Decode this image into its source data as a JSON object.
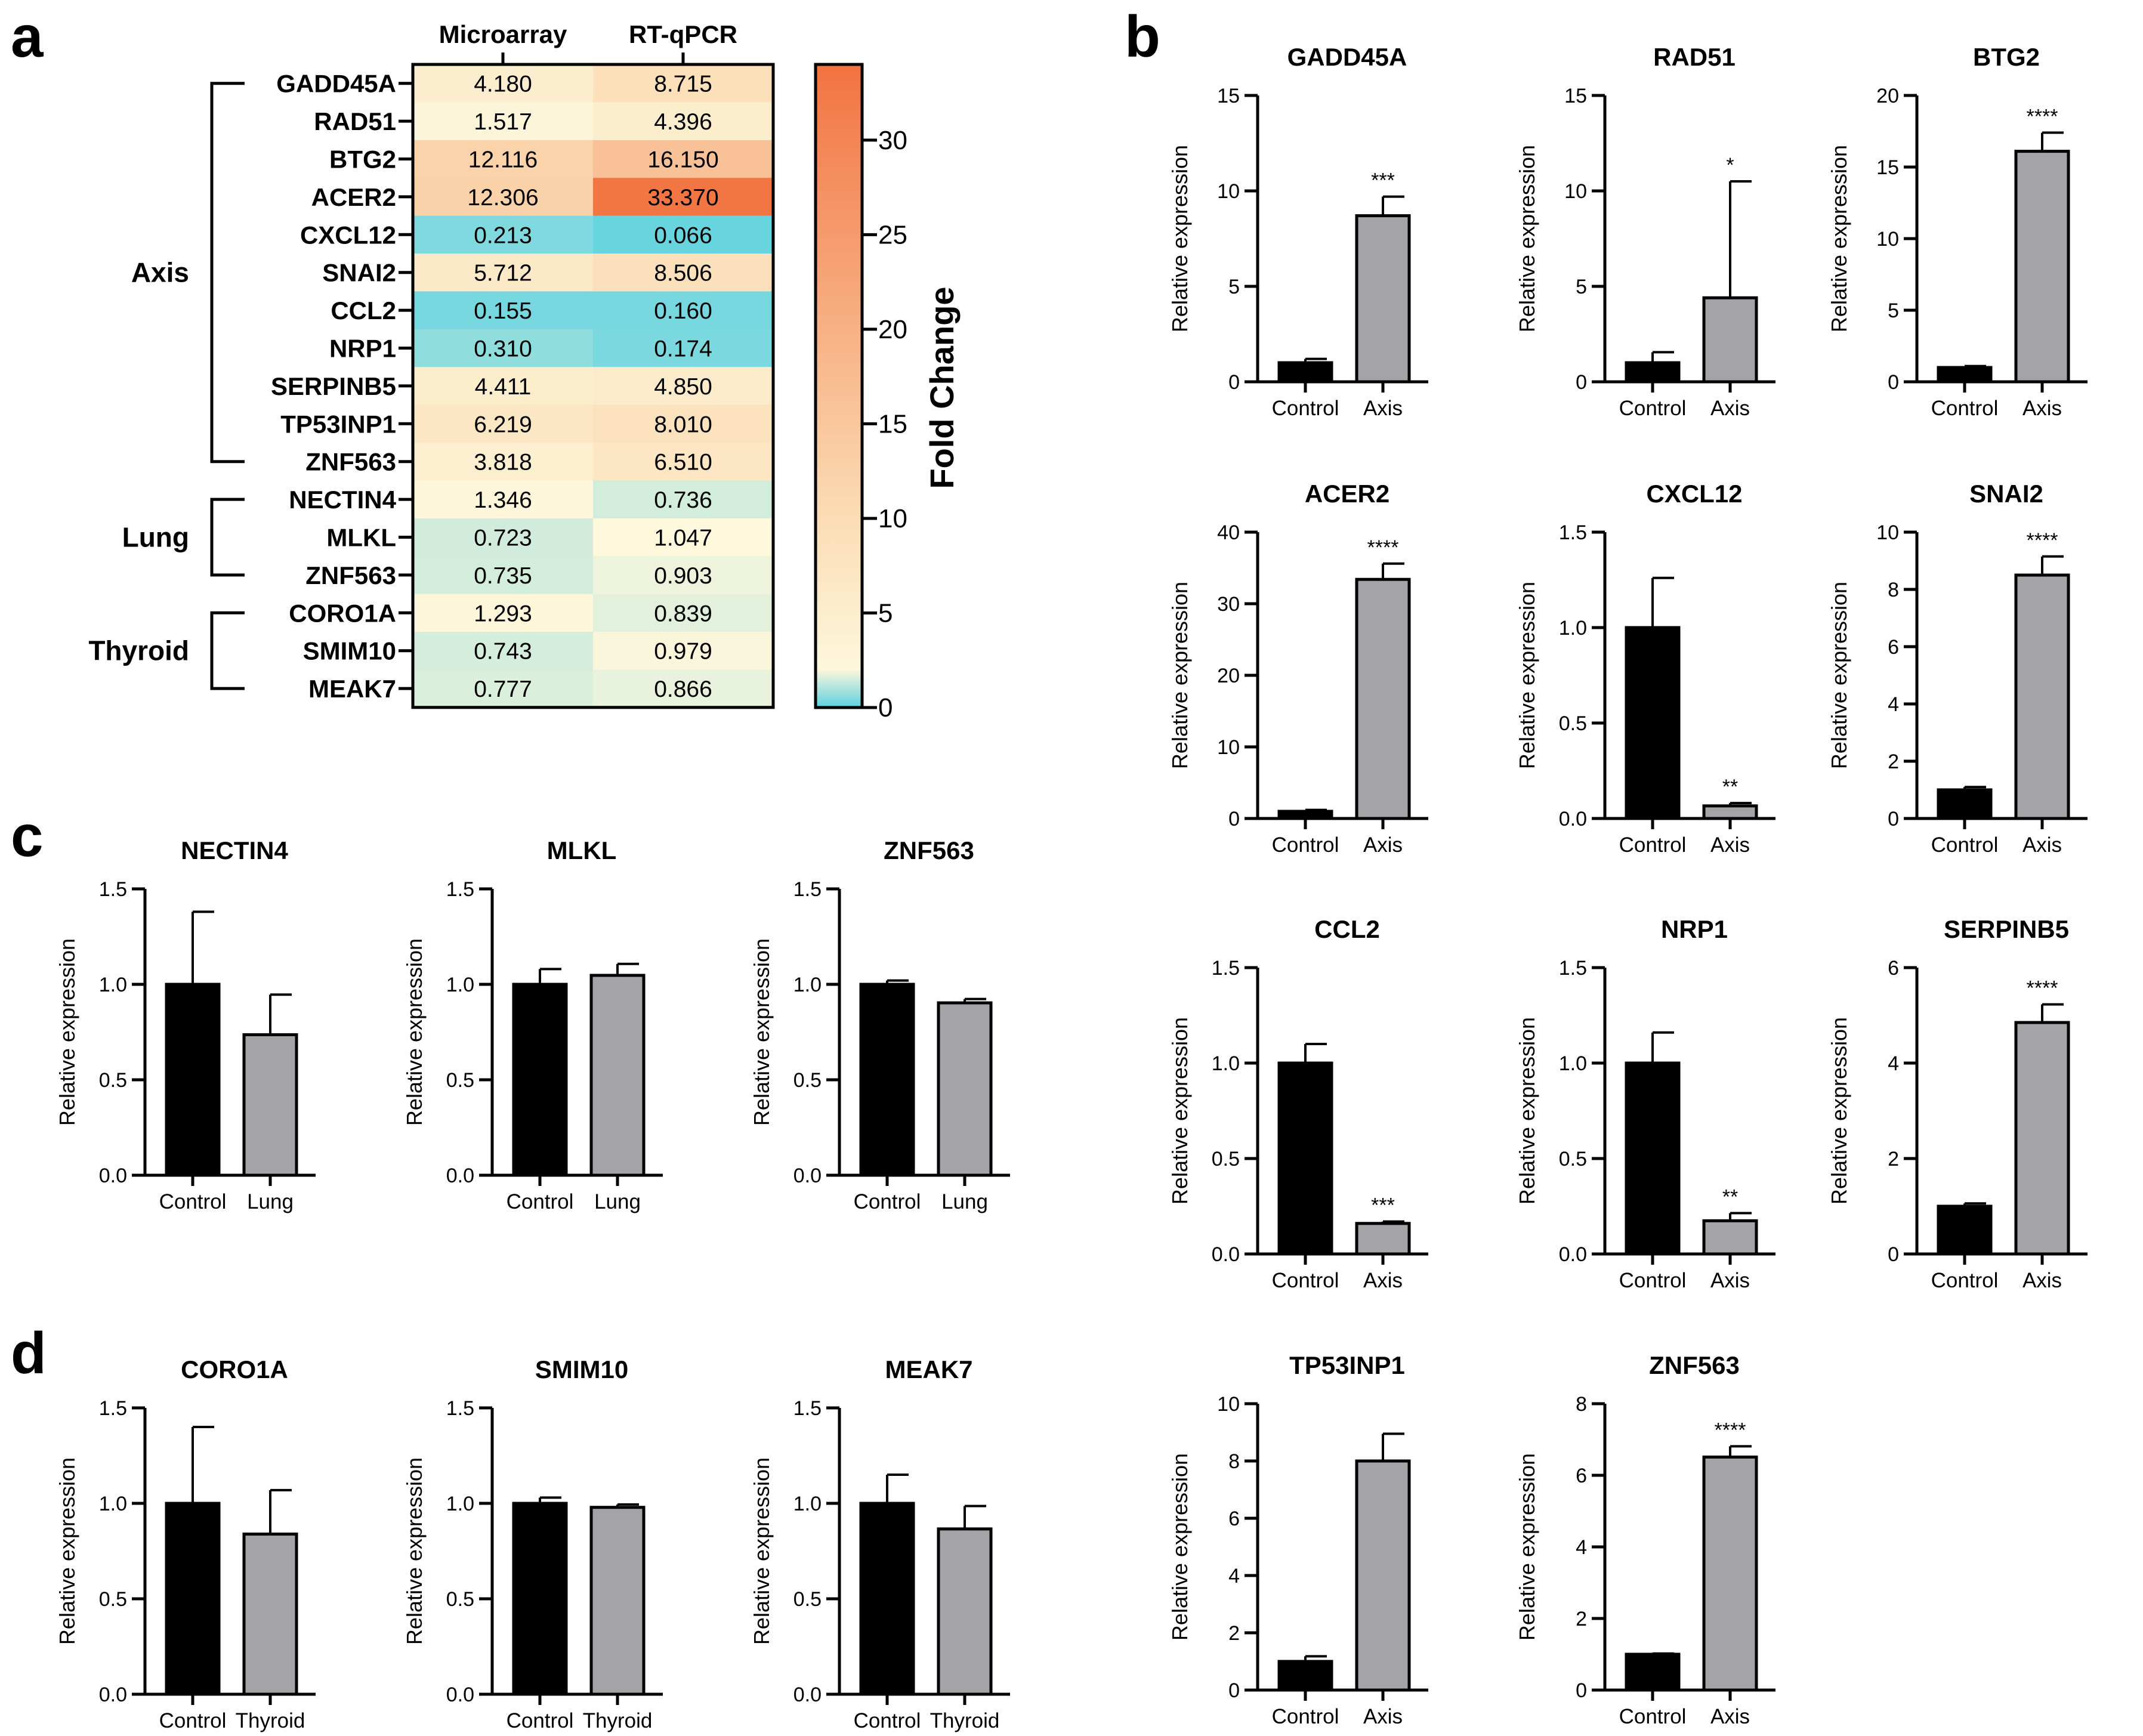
{
  "panel_labels": {
    "a": "a",
    "b": "b",
    "c": "c",
    "d": "d"
  },
  "colors": {
    "control_bar": "#000000",
    "treatment_bar": "#a3a3a8",
    "heatmap_low": "#5ed1de",
    "heatmap_mid": "#fdf7dc",
    "heatmap_high": "#f27341"
  },
  "chart_data": [
    {
      "type": "heatmap",
      "panel": "a",
      "columns": [
        "Microarray",
        "RT-qPCR"
      ],
      "rows": [
        "GADD45A",
        "RAD51",
        "BTG2",
        "ACER2",
        "CXCL12",
        "SNAI2",
        "CCL2",
        "NRP1",
        "SERPINB5",
        "TP53INP1",
        "ZNF563",
        "NECTIN4",
        "MLKL",
        "ZNF563",
        "CORO1A",
        "SMIM10",
        "MEAK7"
      ],
      "values": [
        [
          "4.180",
          "8.715"
        ],
        [
          "1.517",
          "4.396"
        ],
        [
          "12.116",
          "16.150"
        ],
        [
          "12.306",
          "33.370"
        ],
        [
          "0.213",
          "0.066"
        ],
        [
          "5.712",
          "8.506"
        ],
        [
          "0.155",
          "0.160"
        ],
        [
          "0.310",
          "0.174"
        ],
        [
          "4.411",
          "4.850"
        ],
        [
          "6.219",
          "8.010"
        ],
        [
          "3.818",
          "6.510"
        ],
        [
          "1.346",
          "0.736"
        ],
        [
          "0.723",
          "1.047"
        ],
        [
          "0.735",
          "0.903"
        ],
        [
          "1.293",
          "0.839"
        ],
        [
          "0.743",
          "0.979"
        ],
        [
          "0.777",
          "0.866"
        ]
      ],
      "groups": [
        {
          "name": "Axis",
          "first_row": 0,
          "last_row": 10
        },
        {
          "name": "Lung",
          "first_row": 11,
          "last_row": 13
        },
        {
          "name": "Thyroid",
          "first_row": 14,
          "last_row": 16
        }
      ],
      "colorbar": {
        "label": "Fold Change",
        "range": [
          0,
          34
        ],
        "ticks": [
          0,
          5,
          10,
          15,
          20,
          25,
          30
        ]
      }
    },
    {
      "type": "bar",
      "panel": "b",
      "ylabel": "Relative expression",
      "charts": [
        {
          "title": "GADD45A",
          "categories": [
            "Control",
            "Axis"
          ],
          "values": [
            1.0,
            8.7
          ],
          "errors": [
            0.2,
            1.0
          ],
          "ylim": [
            0,
            15
          ],
          "yticks": [
            "0",
            "5",
            "10",
            "15"
          ],
          "significance": "***"
        },
        {
          "title": "RAD51",
          "categories": [
            "Control",
            "Axis"
          ],
          "values": [
            1.0,
            4.4
          ],
          "errors": [
            0.55,
            6.1
          ],
          "ylim": [
            0,
            15
          ],
          "yticks": [
            "0",
            "5",
            "10",
            "15"
          ],
          "significance": "*"
        },
        {
          "title": "BTG2",
          "categories": [
            "Control",
            "Axis"
          ],
          "values": [
            1.0,
            16.1
          ],
          "errors": [
            0.1,
            1.3
          ],
          "ylim": [
            0,
            20
          ],
          "yticks": [
            "0",
            "5",
            "10",
            "15",
            "20"
          ],
          "significance": "****"
        },
        {
          "title": "ACER2",
          "categories": [
            "Control",
            "Axis"
          ],
          "values": [
            1.0,
            33.4
          ],
          "errors": [
            0.2,
            2.2
          ],
          "ylim": [
            0,
            40
          ],
          "yticks": [
            "0",
            "10",
            "20",
            "30",
            "40"
          ],
          "significance": "****"
        },
        {
          "title": "CXCL12",
          "categories": [
            "Control",
            "Axis"
          ],
          "values": [
            1.0,
            0.066
          ],
          "errors": [
            0.26,
            0.015
          ],
          "ylim": [
            0,
            1.5
          ],
          "yticks": [
            "0.0",
            "0.5",
            "1.0",
            "1.5"
          ],
          "significance": "**"
        },
        {
          "title": "SNAI2",
          "categories": [
            "Control",
            "Axis"
          ],
          "values": [
            1.0,
            8.5
          ],
          "errors": [
            0.1,
            0.65
          ],
          "ylim": [
            0,
            10
          ],
          "yticks": [
            "0",
            "2",
            "4",
            "6",
            "8",
            "10"
          ],
          "significance": "****"
        },
        {
          "title": "CCL2",
          "categories": [
            "Control",
            "Axis"
          ],
          "values": [
            1.0,
            0.16
          ],
          "errors": [
            0.1,
            0.01
          ],
          "ylim": [
            0,
            1.5
          ],
          "yticks": [
            "0.0",
            "0.5",
            "1.0",
            "1.5"
          ],
          "significance": "***"
        },
        {
          "title": "NRP1",
          "categories": [
            "Control",
            "Axis"
          ],
          "values": [
            1.0,
            0.174
          ],
          "errors": [
            0.16,
            0.04
          ],
          "ylim": [
            0,
            1.5
          ],
          "yticks": [
            "0.0",
            "0.5",
            "1.0",
            "1.5"
          ],
          "significance": "**"
        },
        {
          "title": "SERPINB5",
          "categories": [
            "Control",
            "Axis"
          ],
          "values": [
            1.0,
            4.85
          ],
          "errors": [
            0.06,
            0.38
          ],
          "ylim": [
            0,
            6
          ],
          "yticks": [
            "0",
            "2",
            "4",
            "6"
          ],
          "significance": "****"
        },
        {
          "title": "TP53INP1",
          "categories": [
            "Control",
            "Axis"
          ],
          "values": [
            1.0,
            8.0
          ],
          "errors": [
            0.18,
            0.95
          ],
          "ylim": [
            0,
            10
          ],
          "yticks": [
            "0",
            "2",
            "4",
            "6",
            "8",
            "10"
          ],
          "significance": ""
        },
        {
          "title": "ZNF563",
          "categories": [
            "Control",
            "Axis"
          ],
          "values": [
            1.0,
            6.51
          ],
          "errors": [
            0.02,
            0.3
          ],
          "ylim": [
            0,
            8
          ],
          "yticks": [
            "0",
            "2",
            "4",
            "6",
            "8"
          ],
          "significance": "****"
        }
      ]
    },
    {
      "type": "bar",
      "panel": "c",
      "ylabel": "Relative expression",
      "charts": [
        {
          "title": "NECTIN4",
          "categories": [
            "Control",
            "Lung"
          ],
          "values": [
            1.0,
            0.736
          ],
          "errors": [
            0.38,
            0.21
          ],
          "ylim": [
            0,
            1.5
          ],
          "yticks": [
            "0.0",
            "0.5",
            "1.0",
            "1.5"
          ],
          "significance": ""
        },
        {
          "title": "MLKL",
          "categories": [
            "Control",
            "Lung"
          ],
          "values": [
            1.0,
            1.047
          ],
          "errors": [
            0.08,
            0.06
          ],
          "ylim": [
            0,
            1.5
          ],
          "yticks": [
            "0.0",
            "0.5",
            "1.0",
            "1.5"
          ],
          "significance": ""
        },
        {
          "title": "ZNF563",
          "categories": [
            "Control",
            "Lung"
          ],
          "values": [
            1.0,
            0.903
          ],
          "errors": [
            0.02,
            0.02
          ],
          "ylim": [
            0,
            1.5
          ],
          "yticks": [
            "0.0",
            "0.5",
            "1.0",
            "1.5"
          ],
          "significance": ""
        }
      ]
    },
    {
      "type": "bar",
      "panel": "d",
      "ylabel": "Relative expression",
      "charts": [
        {
          "title": "CORO1A",
          "categories": [
            "Control",
            "Thyroid"
          ],
          "values": [
            1.0,
            0.839
          ],
          "errors": [
            0.4,
            0.23
          ],
          "ylim": [
            0,
            1.5
          ],
          "yticks": [
            "0.0",
            "0.5",
            "1.0",
            "1.5"
          ],
          "significance": ""
        },
        {
          "title": "SMIM10",
          "categories": [
            "Control",
            "Thyroid"
          ],
          "values": [
            1.0,
            0.979
          ],
          "errors": [
            0.03,
            0.015
          ],
          "ylim": [
            0,
            1.5
          ],
          "yticks": [
            "0.0",
            "0.5",
            "1.0",
            "1.5"
          ],
          "significance": ""
        },
        {
          "title": "MEAK7",
          "categories": [
            "Control",
            "Thyroid"
          ],
          "values": [
            1.0,
            0.866
          ],
          "errors": [
            0.15,
            0.12
          ],
          "ylim": [
            0,
            1.5
          ],
          "yticks": [
            "0.0",
            "0.5",
            "1.0",
            "1.5"
          ],
          "significance": ""
        }
      ]
    }
  ]
}
